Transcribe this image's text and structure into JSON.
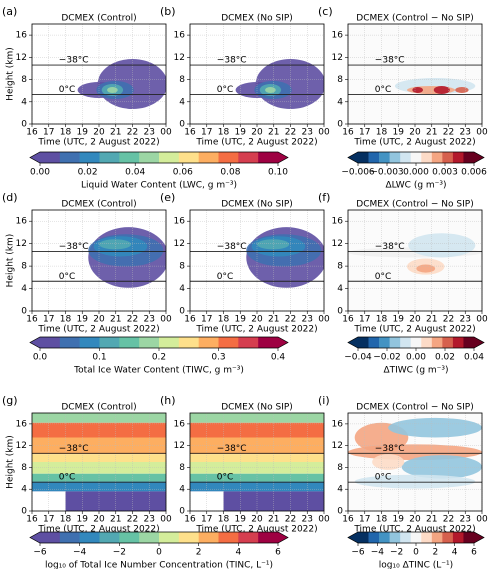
{
  "chart_data": [
    {
      "type": "contour",
      "panel": "(a)",
      "title": "DCMEX (Control)",
      "style": "liquid",
      "xlabel": "Time (UTC, 2 August 2022)",
      "ylabel": "Height (km)",
      "xlim": [
        16,
        24
      ],
      "xticks": [
        16,
        17,
        18,
        19,
        20,
        21,
        22,
        23,
        {
          "value": 24,
          "label": "00"
        }
      ],
      "ylim": [
        0,
        18
      ],
      "yticks": [
        0,
        4,
        8,
        12,
        16
      ],
      "grid": true,
      "isotherms": [
        {
          "label": "−38°C",
          "height": 10.6
        },
        {
          "label": "0°C",
          "height": 5.3
        }
      ]
    },
    {
      "type": "contour",
      "panel": "(b)",
      "title": "DCMEX (No SIP)",
      "style": "liquid",
      "xlabel": "Time (UTC, 2 August 2022)",
      "xlim": [
        16,
        24
      ],
      "xticks": [
        16,
        17,
        18,
        19,
        20,
        21,
        22,
        23,
        {
          "value": 24,
          "label": "00"
        }
      ],
      "ylim": [
        0,
        18
      ],
      "yticks": [
        0,
        4,
        8,
        12,
        16
      ],
      "grid": true,
      "isotherms": [
        {
          "label": "−38°C",
          "height": 10.6
        },
        {
          "label": "0°C",
          "height": 5.3
        }
      ]
    },
    {
      "type": "contour",
      "panel": "(c)",
      "title": "DCMEX (Control − No SIP)",
      "style": "diff-lwc",
      "xlabel": "Time (UTC, 2 August 2022)",
      "xlim": [
        16,
        24
      ],
      "xticks": [
        16,
        17,
        18,
        19,
        20,
        21,
        22,
        23,
        {
          "value": 24,
          "label": "00"
        }
      ],
      "ylim": [
        0,
        18
      ],
      "yticks": [
        0,
        4,
        8,
        12,
        16
      ],
      "grid": true,
      "isotherms": [
        {
          "label": "−38°C",
          "height": 10.6
        },
        {
          "label": "0°C",
          "height": 5.3
        }
      ]
    },
    {
      "type": "contour",
      "panel": "(d)",
      "title": "DCMEX (Control)",
      "style": "ice",
      "xlabel": "Time (UTC, 2 August 2022)",
      "ylabel": "Height (km)",
      "xlim": [
        16,
        24
      ],
      "xticks": [
        16,
        17,
        18,
        19,
        20,
        21,
        22,
        23,
        {
          "value": 24,
          "label": "00"
        }
      ],
      "ylim": [
        0,
        18
      ],
      "yticks": [
        0,
        4,
        8,
        12,
        16
      ],
      "grid": true,
      "isotherms": [
        {
          "label": "−38°C",
          "height": 10.6
        },
        {
          "label": "0°C",
          "height": 5.3
        }
      ]
    },
    {
      "type": "contour",
      "panel": "(e)",
      "title": "DCMEX (No SIP)",
      "style": "ice",
      "xlabel": "Time (UTC, 2 August 2022)",
      "xlim": [
        16,
        24
      ],
      "xticks": [
        16,
        17,
        18,
        19,
        20,
        21,
        22,
        23,
        {
          "value": 24,
          "label": "00"
        }
      ],
      "ylim": [
        0,
        18
      ],
      "yticks": [
        0,
        4,
        8,
        12,
        16
      ],
      "grid": true,
      "isotherms": [
        {
          "label": "−38°C",
          "height": 10.6
        },
        {
          "label": "0°C",
          "height": 5.3
        }
      ]
    },
    {
      "type": "contour",
      "panel": "(f)",
      "title": "DCMEX (Control − No SIP)",
      "style": "diff-tiwc",
      "xlabel": "Time (UTC, 2 August 2022)",
      "xlim": [
        16,
        24
      ],
      "xticks": [
        16,
        17,
        18,
        19,
        20,
        21,
        22,
        23,
        {
          "value": 24,
          "label": "00"
        }
      ],
      "ylim": [
        0,
        18
      ],
      "yticks": [
        0,
        4,
        8,
        12,
        16
      ],
      "grid": true,
      "isotherms": [
        {
          "label": "−38°C",
          "height": 10.6
        },
        {
          "label": "0°C",
          "height": 5.3
        }
      ]
    },
    {
      "type": "contour",
      "panel": "(g)",
      "title": "DCMEX (Control)",
      "style": "number",
      "xlabel": "Time (UTC, 2 August 2022)",
      "ylabel": "Height (km)",
      "xlim": [
        16,
        24
      ],
      "xticks": [
        16,
        17,
        18,
        19,
        20,
        21,
        22,
        23,
        {
          "value": 24,
          "label": "00"
        }
      ],
      "ylim": [
        0,
        18
      ],
      "yticks": [
        0,
        4,
        8,
        12,
        16
      ],
      "grid": true,
      "isotherms": [
        {
          "label": "−38°C",
          "height": 10.6
        },
        {
          "label": "0°C",
          "height": 5.3
        }
      ]
    },
    {
      "type": "contour",
      "panel": "(h)",
      "title": "DCMEX (No SIP)",
      "style": "number",
      "xlabel": "Time (UTC, 2 August 2022)",
      "xlim": [
        16,
        24
      ],
      "xticks": [
        16,
        17,
        18,
        19,
        20,
        21,
        22,
        23,
        {
          "value": 24,
          "label": "00"
        }
      ],
      "ylim": [
        0,
        18
      ],
      "yticks": [
        0,
        4,
        8,
        12,
        16
      ],
      "grid": true,
      "isotherms": [
        {
          "label": "−38°C",
          "height": 10.6
        },
        {
          "label": "0°C",
          "height": 5.3
        }
      ]
    },
    {
      "type": "contour",
      "panel": "(i)",
      "title": "DCMEX (Control − No SIP)",
      "style": "diff-tinc",
      "xlabel": "Time (UTC, 2 August 2022)",
      "xlim": [
        16,
        24
      ],
      "xticks": [
        16,
        17,
        18,
        19,
        20,
        21,
        22,
        23,
        {
          "value": 24,
          "label": "00"
        }
      ],
      "ylim": [
        0,
        18
      ],
      "yticks": [
        0,
        4,
        8,
        12,
        16
      ],
      "grid": true,
      "isotherms": [
        {
          "label": "−38°C",
          "height": 10.6
        },
        {
          "label": "0°C",
          "height": 5.3
        }
      ]
    }
  ],
  "colorbars": [
    {
      "label": "Liquid Water Content (LWC, g m⁻³)",
      "lim": [
        0,
        0.1
      ],
      "ticks": [
        {
          "value": 0,
          "label": "0.00"
        },
        {
          "value": 0.02,
          "label": "0.02"
        },
        {
          "value": 0.04,
          "label": "0.04"
        },
        {
          "value": 0.06,
          "label": "0.06"
        },
        {
          "value": 0.08,
          "label": "0.08"
        },
        {
          "value": 0.1,
          "label": "0.10"
        }
      ],
      "colors": [
        "#5e4fa2",
        "#3f70b0",
        "#3288bd",
        "#52a8b2",
        "#66c2a5",
        "#9cd6a4",
        "#d4ed9b",
        "#fee08b",
        "#fdae61",
        "#f46d43",
        "#d53e4f",
        "#9e0142"
      ]
    },
    {
      "label": "ΔLWC (g m⁻³)",
      "lim": [
        -0.006,
        0.006
      ],
      "ticks": [
        {
          "value": -0.006,
          "label": "−0.006"
        },
        {
          "value": -0.003,
          "label": "−0.003"
        },
        {
          "value": 0,
          "label": "0.000"
        },
        {
          "value": 0.003,
          "label": "0.003"
        },
        {
          "value": 0.006,
          "label": "0.006"
        }
      ],
      "colors": [
        "#053061",
        "#2166ac",
        "#4393c3",
        "#92c5de",
        "#d1e5f0",
        "#f7f7f7",
        "#fddbc7",
        "#f4a582",
        "#d6604d",
        "#b2182b",
        "#67001f"
      ]
    },
    {
      "label": "Total Ice Water Content (TIWC, g m⁻³)",
      "lim": [
        0,
        0.4
      ],
      "ticks": [
        {
          "value": 0,
          "label": "0.0"
        },
        0.1,
        0.2,
        0.3,
        0.4
      ],
      "colors": [
        "#5e4fa2",
        "#3f70b0",
        "#3288bd",
        "#52a8b2",
        "#66c2a5",
        "#9cd6a4",
        "#d4ed9b",
        "#fee08b",
        "#fdae61",
        "#f46d43",
        "#d53e4f",
        "#9e0142"
      ]
    },
    {
      "label": "ΔTIWC (g m⁻³)",
      "lim": [
        -0.04,
        0.04
      ],
      "ticks": [
        {
          "value": -0.04,
          "label": "−0.04"
        },
        {
          "value": -0.02,
          "label": "−0.02"
        },
        {
          "value": 0,
          "label": "0.00"
        },
        0.02,
        0.04
      ],
      "colors": [
        "#053061",
        "#2166ac",
        "#4393c3",
        "#92c5de",
        "#d1e5f0",
        "#f7f7f7",
        "#fddbc7",
        "#f4a582",
        "#d6604d",
        "#b2182b",
        "#67001f"
      ]
    },
    {
      "label": "log₁₀ of Total Ice Number Concentration (TINC, L⁻¹)",
      "lim": [
        -6,
        6
      ],
      "ticks": [
        {
          "value": -6,
          "label": "−6"
        },
        {
          "value": -4,
          "label": "−4"
        },
        {
          "value": -2,
          "label": "−2"
        },
        0,
        2,
        4,
        6
      ],
      "colors": [
        "#5e4fa2",
        "#3f70b0",
        "#3288bd",
        "#52a8b2",
        "#66c2a5",
        "#9cd6a4",
        "#d4ed9b",
        "#fee08b",
        "#fdae61",
        "#f46d43",
        "#d53e4f",
        "#9e0142"
      ]
    },
    {
      "label": "log₁₀ ΔTINC (L⁻¹)",
      "lim": [
        -6,
        6
      ],
      "ticks": [
        {
          "value": -6,
          "label": "−6"
        },
        {
          "value": -4,
          "label": "−4"
        },
        {
          "value": -2,
          "label": "−2"
        },
        0,
        2,
        4,
        6
      ],
      "colors": [
        "#053061",
        "#2166ac",
        "#4393c3",
        "#92c5de",
        "#d1e5f0",
        "#f7f7f7",
        "#fddbc7",
        "#f4a582",
        "#d6604d",
        "#b2182b",
        "#67001f"
      ]
    }
  ]
}
